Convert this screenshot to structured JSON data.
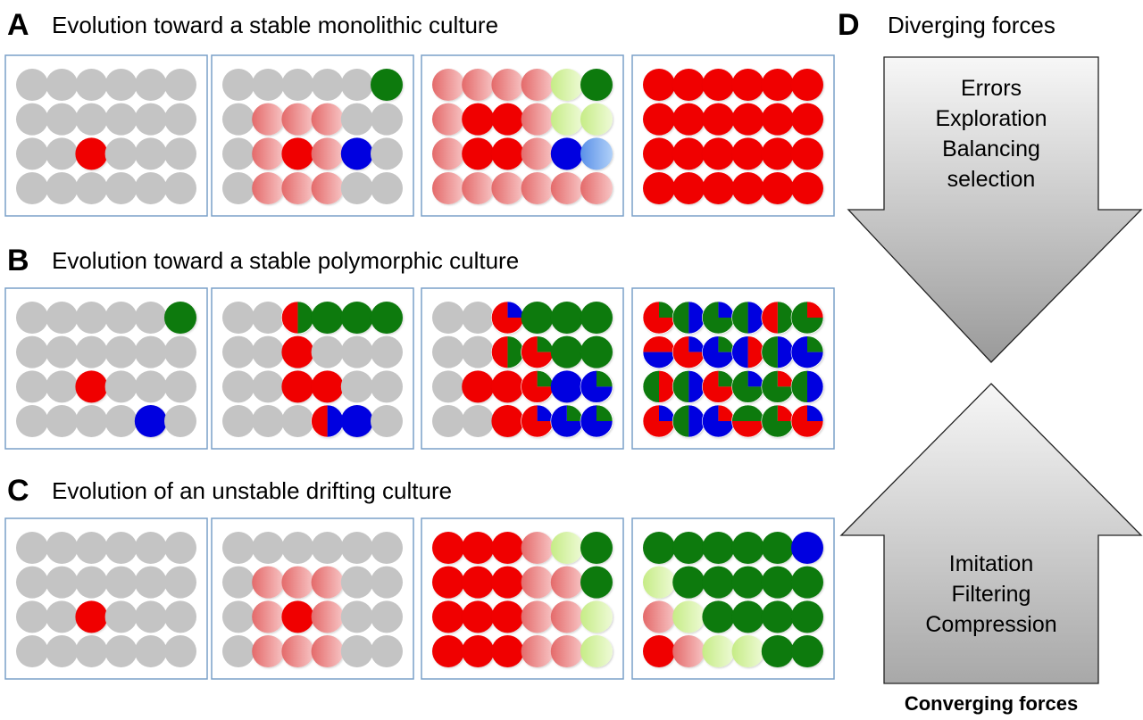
{
  "colors": {
    "grey": "#c4c4c4",
    "red": "#f00000",
    "red_light": "#f09090",
    "green": "#0a7a0a",
    "green_light": "#d8f0a8",
    "blue": "#0000e0",
    "blue_light": "#80b0f0",
    "panel_border": "#7aa0c8"
  },
  "rows": [
    {
      "letter": "A",
      "title": "Evolution toward a stable monolithic culture",
      "panels": [
        [
          [
            "g",
            "g",
            "g",
            "g",
            "g",
            "g"
          ],
          [
            "g",
            "g",
            "g",
            "g",
            "g",
            "g"
          ],
          [
            "g",
            "g",
            "r",
            "g",
            "g",
            "g"
          ],
          [
            "g",
            "g",
            "g",
            "g",
            "g",
            "g"
          ]
        ],
        [
          [
            "g",
            "g",
            "g",
            "g",
            "g",
            "G"
          ],
          [
            "g",
            "rl",
            "rl",
            "rl",
            "g",
            "g"
          ],
          [
            "g",
            "rl",
            "r",
            "rl",
            "b",
            "g"
          ],
          [
            "g",
            "rl",
            "rl",
            "rl",
            "g",
            "g"
          ]
        ],
        [
          [
            "rl",
            "rl",
            "rl",
            "rl",
            "Gl",
            "G"
          ],
          [
            "rl",
            "r",
            "r",
            "rl",
            "Gl",
            "Gl"
          ],
          [
            "rl",
            "r",
            "r",
            "rl",
            "b",
            "bl"
          ],
          [
            "rl",
            "rl",
            "rl",
            "rl",
            "rl",
            "rl"
          ]
        ],
        [
          [
            "r",
            "r",
            "r",
            "r",
            "r",
            "r"
          ],
          [
            "r",
            "r",
            "r",
            "r",
            "r",
            "r"
          ],
          [
            "r",
            "r",
            "r",
            "r",
            "r",
            "r"
          ],
          [
            "r",
            "r",
            "r",
            "r",
            "r",
            "r"
          ]
        ]
      ]
    },
    {
      "letter": "B",
      "title": "Evolution toward a stable polymorphic culture",
      "panels": [
        [
          [
            "g",
            "g",
            "g",
            "g",
            "g",
            "G"
          ],
          [
            "g",
            "g",
            "g",
            "g",
            "g",
            "g"
          ],
          [
            "g",
            "g",
            "r",
            "g",
            "g",
            "g"
          ],
          [
            "g",
            "g",
            "g",
            "g",
            "b",
            "g"
          ]
        ],
        [
          [
            "g",
            "g",
            "m1",
            "G",
            "G",
            "G"
          ],
          [
            "g",
            "g",
            "r",
            "g",
            "g",
            "g"
          ],
          [
            "g",
            "g",
            "r",
            "r",
            "g",
            "g"
          ],
          [
            "g",
            "g",
            "g",
            "m2",
            "b",
            "g"
          ]
        ],
        [
          [
            "g",
            "g",
            "m3",
            "G",
            "G",
            "G"
          ],
          [
            "g",
            "g",
            "m1",
            "m4",
            "G",
            "G"
          ],
          [
            "g",
            "r",
            "r",
            "m5",
            "b",
            "m6"
          ],
          [
            "g",
            "g",
            "r",
            "m7",
            "m8",
            "m6"
          ]
        ],
        [
          [
            "m9",
            "m10",
            "m11",
            "m10",
            "m1",
            "m12"
          ],
          [
            "m13",
            "m14",
            "m15",
            "m16",
            "m10",
            "m17"
          ],
          [
            "m18",
            "m10",
            "m19",
            "m20",
            "m21",
            "m22"
          ],
          [
            "m23",
            "m10",
            "m24",
            "m25",
            "m26",
            "m27"
          ]
        ]
      ]
    },
    {
      "letter": "C",
      "title": "Evolution of an unstable drifting culture",
      "panels": [
        [
          [
            "g",
            "g",
            "g",
            "g",
            "g",
            "g"
          ],
          [
            "g",
            "g",
            "g",
            "g",
            "g",
            "g"
          ],
          [
            "g",
            "g",
            "r",
            "g",
            "g",
            "g"
          ],
          [
            "g",
            "g",
            "g",
            "g",
            "g",
            "g"
          ]
        ],
        [
          [
            "g",
            "g",
            "g",
            "g",
            "g",
            "g"
          ],
          [
            "g",
            "rl",
            "rl",
            "rl",
            "g",
            "g"
          ],
          [
            "g",
            "rl",
            "r",
            "rl",
            "g",
            "g"
          ],
          [
            "g",
            "rl",
            "rl",
            "rl",
            "g",
            "g"
          ]
        ],
        [
          [
            "r",
            "r",
            "r",
            "rl",
            "Gl",
            "G"
          ],
          [
            "r",
            "r",
            "r",
            "rl",
            "rl",
            "G"
          ],
          [
            "r",
            "r",
            "r",
            "rl",
            "rl",
            "Gl"
          ],
          [
            "r",
            "r",
            "r",
            "rl",
            "rl",
            "Gl"
          ]
        ],
        [
          [
            "G",
            "G",
            "G",
            "G",
            "G",
            "b"
          ],
          [
            "Gl",
            "G",
            "G",
            "G",
            "G",
            "G"
          ],
          [
            "rl",
            "Gl",
            "G",
            "G",
            "G",
            "G"
          ],
          [
            "r",
            "rl",
            "Gl",
            "Gl",
            "G",
            "G"
          ]
        ]
      ]
    }
  ],
  "pies": {
    "m1": [
      [
        "G",
        0,
        0.5
      ],
      [
        "r",
        0.5,
        1
      ]
    ],
    "m2": [
      [
        "b",
        0,
        0.5
      ],
      [
        "r",
        0.5,
        1
      ]
    ],
    "m3": [
      [
        "b",
        0,
        0.25
      ],
      [
        "r",
        0.25,
        1
      ]
    ],
    "m4": [
      [
        "G",
        0,
        0.25
      ],
      [
        "r",
        0.25,
        1
      ]
    ],
    "m5": [
      [
        "G",
        0,
        0.25
      ],
      [
        "r",
        0.25,
        1
      ]
    ],
    "m6": [
      [
        "G",
        0,
        0.25
      ],
      [
        "b",
        0.25,
        1
      ]
    ],
    "m7": [
      [
        "b",
        0,
        0.25
      ],
      [
        "r",
        0.25,
        1
      ]
    ],
    "m8": [
      [
        "G",
        0,
        0.25
      ],
      [
        "b",
        0.25,
        1
      ]
    ],
    "m9": [
      [
        "G",
        0,
        0.25
      ],
      [
        "r",
        0.25,
        1
      ]
    ],
    "m10": [
      [
        "b",
        0,
        0.5
      ],
      [
        "G",
        0.5,
        1
      ]
    ],
    "m11": [
      [
        "b",
        0,
        0.25
      ],
      [
        "G",
        0.25,
        1
      ]
    ],
    "m12": [
      [
        "r",
        0,
        0.25
      ],
      [
        "G",
        0.25,
        1
      ]
    ],
    "m13": [
      [
        "r",
        0.75,
        1.25
      ],
      [
        "b",
        0.25,
        0.75
      ]
    ],
    "m14": [
      [
        "b",
        0,
        0.25
      ],
      [
        "r",
        0.25,
        1
      ]
    ],
    "m15": [
      [
        "G",
        0,
        0.25
      ],
      [
        "b",
        0.25,
        1
      ]
    ],
    "m16": [
      [
        "r",
        0,
        0.5
      ],
      [
        "b",
        0.5,
        1
      ]
    ],
    "m17": [
      [
        "G",
        0,
        0.25
      ],
      [
        "b",
        0.25,
        1
      ]
    ],
    "m18": [
      [
        "r",
        0,
        0.5
      ],
      [
        "G",
        0.5,
        1
      ]
    ],
    "m19": [
      [
        "G",
        0,
        0.25
      ],
      [
        "r",
        0.25,
        1
      ]
    ],
    "m20": [
      [
        "b",
        0,
        0.25
      ],
      [
        "G",
        0.25,
        1
      ]
    ],
    "m21": [
      [
        "r",
        0,
        0.25
      ],
      [
        "G",
        0.25,
        1
      ]
    ],
    "m22": [
      [
        "b",
        0,
        0.5
      ],
      [
        "G",
        0.5,
        1
      ]
    ],
    "m23": [
      [
        "b",
        0,
        0.25
      ],
      [
        "r",
        0.25,
        1
      ]
    ],
    "m24": [
      [
        "r",
        0,
        0.25
      ],
      [
        "b",
        0.25,
        1
      ]
    ],
    "m25": [
      [
        "G",
        0.75,
        1.25
      ],
      [
        "r",
        0.25,
        0.75
      ]
    ],
    "m26": [
      [
        "r",
        0,
        0.25
      ],
      [
        "G",
        0.25,
        1
      ]
    ],
    "m27": [
      [
        "b",
        0,
        0.25
      ],
      [
        "r",
        0.25,
        1
      ]
    ]
  },
  "panel_d": {
    "letter": "D",
    "title": "Diverging forces",
    "diverging_items": [
      "Errors",
      "Exploration",
      "Balancing",
      "selection"
    ],
    "converging_items": [
      "Imitation",
      "Filtering",
      "Compression"
    ],
    "footer": "Converging forces"
  }
}
